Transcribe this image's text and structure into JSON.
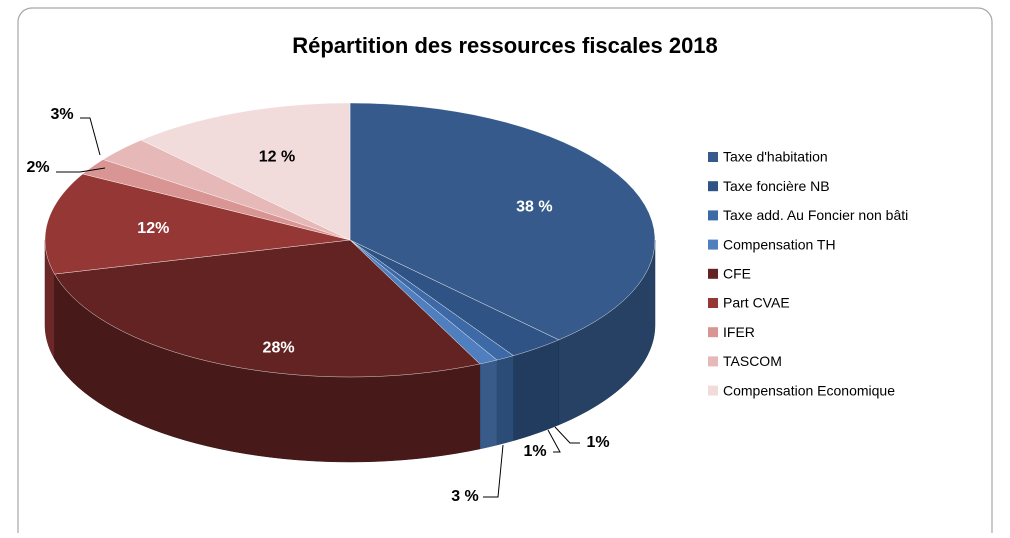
{
  "chart_data": {
    "type": "pie",
    "title": "Répartition des ressources fiscales 2018",
    "categories": [
      "Taxe d'habitation",
      "Taxe foncière NB",
      "Taxe add. Au Foncier non bâti",
      "Compensation TH",
      "CFE",
      "Part CVAE",
      "IFER",
      "TASCOM",
      "Compensation Economique"
    ],
    "values": [
      38,
      3,
      1,
      1,
      28,
      12,
      2,
      3,
      12
    ],
    "value_labels": [
      "38 %",
      "3 %",
      "1%",
      "1%",
      "28%",
      "12%",
      "2%",
      "3%",
      "12 %"
    ],
    "colors": [
      "#355a8b",
      "#2f5384",
      "#3d69a6",
      "#4f7fbe",
      "#632323",
      "#953735",
      "#d99594",
      "#e6b8b7",
      "#f2dcdb"
    ],
    "legend": "right"
  }
}
